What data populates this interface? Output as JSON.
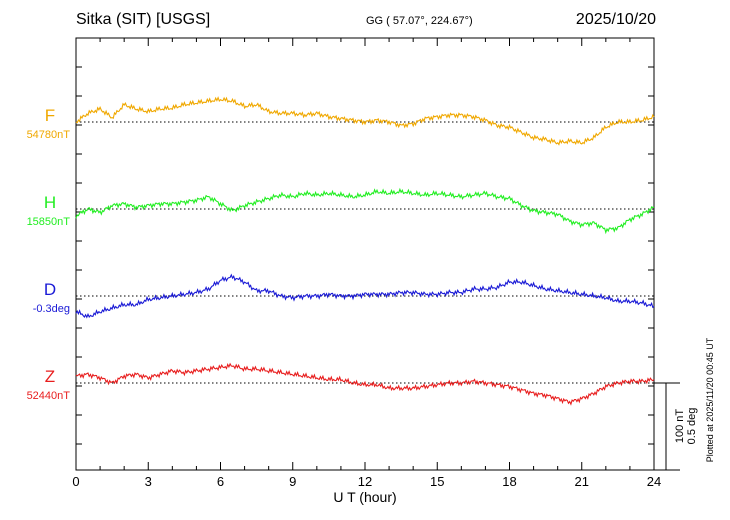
{
  "header": {
    "station": "Sitka (SIT)  [USGS]",
    "coords": "GG ( 57.07°, 224.67°)",
    "date": "2025/10/20"
  },
  "footer": {
    "plotted": "Plotted at 2025/11/20 00:45 UT"
  },
  "scale": {
    "nt_label": "100 nT",
    "deg_label": "0.5 deg",
    "nt_per_tick_gap": 100,
    "deg_per_tick_gap": 0.5
  },
  "chart_data": {
    "type": "line",
    "xlabel": "U T (hour)",
    "xlim": [
      0,
      24
    ],
    "x_ticks": [
      0,
      3,
      6,
      9,
      12,
      15,
      18,
      21,
      24
    ],
    "grid": false,
    "series": [
      {
        "name": "F",
        "baseline_label": "54780nT",
        "color": "#f0a800",
        "x": [
          0,
          0.5,
          1,
          1.5,
          2,
          2.5,
          3,
          3.5,
          4,
          4.5,
          5,
          5.5,
          6,
          6.5,
          7,
          7.5,
          8,
          8.5,
          9,
          9.5,
          10,
          10.5,
          11,
          11.5,
          12,
          12.5,
          13,
          13.5,
          14,
          14.5,
          15,
          15.5,
          16,
          16.5,
          17,
          17.5,
          18,
          18.5,
          19,
          19.5,
          20,
          20.5,
          21,
          21.5,
          22,
          22.5,
          23,
          23.5,
          24
        ],
        "y": [
          0,
          10,
          15,
          5,
          20,
          15,
          12,
          15,
          16,
          20,
          22,
          24,
          26,
          24,
          18,
          20,
          12,
          10,
          10,
          8,
          10,
          6,
          4,
          2,
          0,
          2,
          0,
          -4,
          -2,
          4,
          6,
          8,
          8,
          6,
          2,
          -4,
          -6,
          -12,
          -18,
          -20,
          -24,
          -22,
          -24,
          -18,
          -6,
          0,
          0,
          2,
          6
        ]
      },
      {
        "name": "H",
        "baseline_label": "15850nT",
        "color": "#22ee22",
        "x": [
          0,
          0.5,
          1,
          1.5,
          2,
          2.5,
          3,
          3.5,
          4,
          4.5,
          5,
          5.5,
          6,
          6.5,
          7,
          7.5,
          8,
          8.5,
          9,
          9.5,
          10,
          10.5,
          11,
          11.5,
          12,
          12.5,
          13,
          13.5,
          14,
          14.5,
          15,
          15.5,
          16,
          16.5,
          17,
          17.5,
          18,
          18.5,
          19,
          19.5,
          20,
          20.5,
          21,
          21.5,
          22,
          22.5,
          23,
          23.5,
          24
        ],
        "y": [
          -8,
          0,
          -4,
          4,
          6,
          2,
          4,
          6,
          6,
          8,
          10,
          14,
          6,
          -2,
          4,
          8,
          12,
          16,
          14,
          18,
          16,
          18,
          16,
          14,
          16,
          20,
          18,
          20,
          18,
          16,
          18,
          16,
          14,
          16,
          18,
          14,
          12,
          4,
          -2,
          -4,
          -6,
          -14,
          -18,
          -16,
          -24,
          -22,
          -12,
          -6,
          2
        ]
      },
      {
        "name": "D",
        "baseline_label": "-0.3deg",
        "color": "#1a1ad6",
        "x": [
          0,
          0.5,
          1,
          1.5,
          2,
          2.5,
          3,
          3.5,
          4,
          4.5,
          5,
          5.5,
          6,
          6.5,
          7,
          7.5,
          8,
          8.5,
          9,
          9.5,
          10,
          10.5,
          11,
          11.5,
          12,
          12.5,
          13,
          13.5,
          14,
          14.5,
          15,
          15.5,
          16,
          16.5,
          17,
          17.5,
          18,
          18.5,
          19,
          19.5,
          20,
          20.5,
          21,
          21.5,
          22,
          22.5,
          23,
          23.5,
          24
        ],
        "y": [
          -0.09,
          -0.12,
          -0.09,
          -0.07,
          -0.05,
          -0.05,
          -0.02,
          -0.01,
          0.0,
          0.01,
          0.02,
          0.04,
          0.09,
          0.11,
          0.08,
          0.03,
          0.03,
          0.0,
          -0.01,
          0.0,
          0.0,
          0.01,
          0.0,
          0.0,
          0.01,
          0.01,
          0.01,
          0.02,
          0.02,
          0.01,
          0.01,
          0.02,
          0.02,
          0.04,
          0.04,
          0.05,
          0.08,
          0.08,
          0.06,
          0.04,
          0.03,
          0.02,
          0.01,
          0.0,
          -0.01,
          -0.03,
          -0.03,
          -0.04,
          -0.06
        ]
      },
      {
        "name": "Z",
        "baseline_label": "52440nT",
        "color": "#e81e1e",
        "x": [
          0,
          0.5,
          1,
          1.5,
          2,
          2.5,
          3,
          3.5,
          4,
          4.5,
          5,
          5.5,
          6,
          6.5,
          7,
          7.5,
          8,
          8.5,
          9,
          9.5,
          10,
          10.5,
          11,
          11.5,
          12,
          12.5,
          13,
          13.5,
          14,
          14.5,
          15,
          15.5,
          16,
          16.5,
          17,
          17.5,
          18,
          18.5,
          19,
          19.5,
          20,
          20.5,
          21,
          21.5,
          22,
          22.5,
          23,
          23.5,
          24
        ],
        "y": [
          8,
          10,
          6,
          0,
          8,
          10,
          6,
          10,
          14,
          12,
          14,
          16,
          18,
          20,
          16,
          16,
          14,
          12,
          10,
          8,
          6,
          4,
          4,
          0,
          -2,
          -2,
          -6,
          -6,
          -6,
          -4,
          -2,
          0,
          0,
          2,
          0,
          -2,
          -4,
          -8,
          -12,
          -14,
          -18,
          -22,
          -18,
          -12,
          -4,
          0,
          2,
          2,
          4
        ]
      }
    ]
  }
}
